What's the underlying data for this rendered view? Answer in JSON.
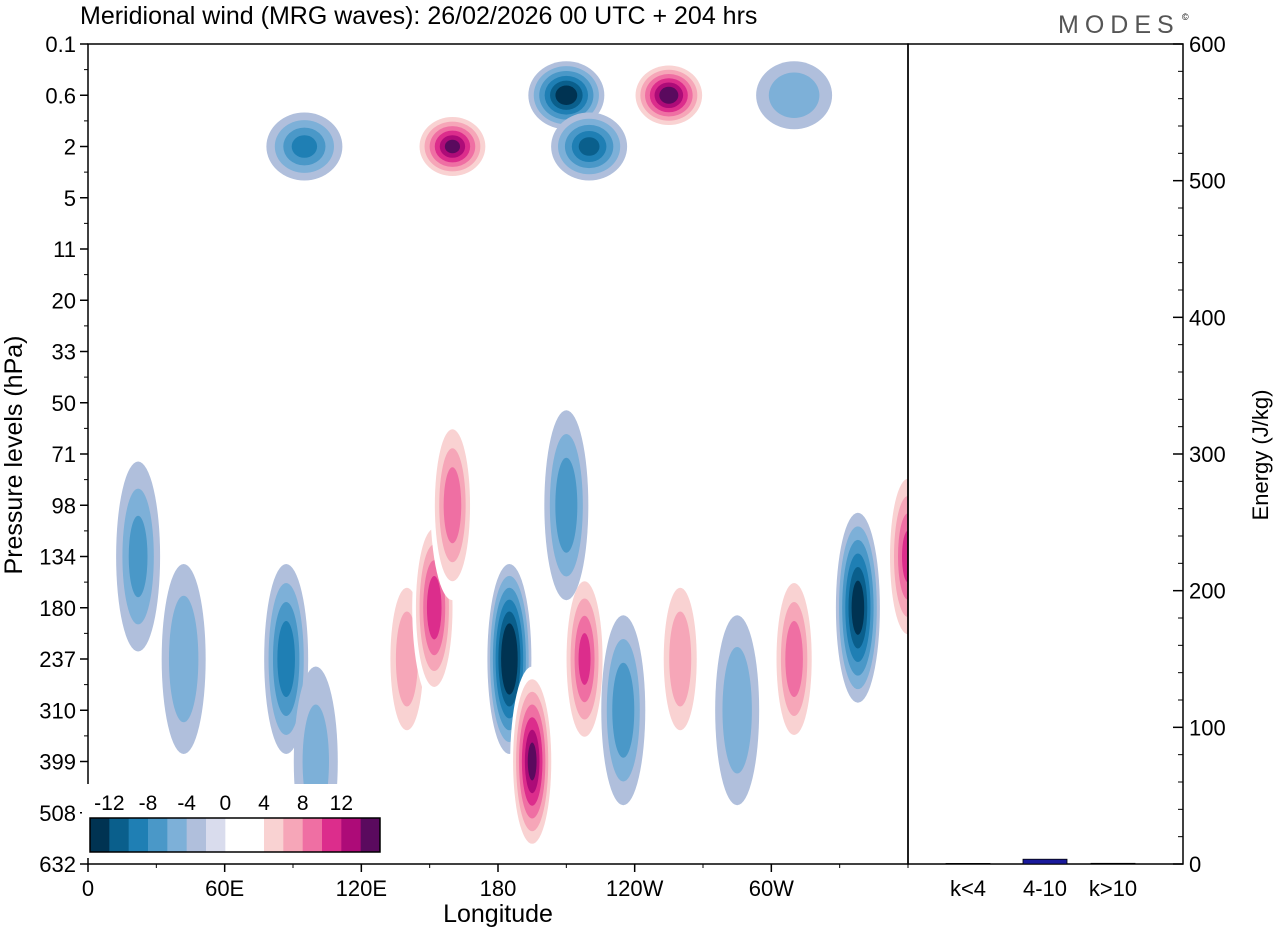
{
  "header": {
    "title": "Meridional wind (MRG waves):  26/02/2026  00 UTC  + 204 hrs",
    "logo": "MODES",
    "logo_mark": "©"
  },
  "chart_data": [
    {
      "type": "heatmap",
      "title": "Meridional wind (MRG waves)",
      "xlabel": "Longitude",
      "ylabel": "Pressure levels (hPa)",
      "x_ticks": [
        "0",
        "60E",
        "120E",
        "180",
        "120W",
        "60W"
      ],
      "x_tick_degrees": [
        0,
        60,
        120,
        180,
        240,
        300
      ],
      "xlim": [
        0,
        360
      ],
      "y_ticks": [
        "0.1",
        "0.6",
        "2",
        "5",
        "11",
        "20",
        "33",
        "50",
        "71",
        "98",
        "134",
        "180",
        "237",
        "310",
        "399",
        "508",
        "632"
      ],
      "colorbar": {
        "labels": [
          "-12",
          "-8",
          "-4",
          "0",
          "4",
          "8",
          "12"
        ],
        "label_levels": [
          -12,
          -8,
          -4,
          0,
          4,
          8,
          12
        ],
        "levels": [
          -14,
          -12,
          -10,
          -8,
          -6,
          -4,
          -2,
          0,
          2,
          4,
          6,
          8,
          10,
          12,
          14
        ],
        "colors": [
          "#003352",
          "#0a5f8c",
          "#1f7fb4",
          "#4a98c8",
          "#7db0d8",
          "#b0bfdc",
          "#d9dced",
          "#ffffff",
          "#ffffff",
          "#f9d2d2",
          "#f6a6b8",
          "#ef6fa3",
          "#dc2d8c",
          "#ad0b78",
          "#5a0a5e"
        ]
      },
      "features": [
        {
          "lon": 22,
          "level": "134",
          "value": -6
        },
        {
          "lon": 42,
          "level": "237",
          "value": -5
        },
        {
          "lon": 87,
          "level": "237",
          "value": -9
        },
        {
          "lon": 100,
          "level": "399",
          "value": -4
        },
        {
          "lon": 140,
          "level": "237",
          "value": 7
        },
        {
          "lon": 152,
          "level": "180",
          "value": 11
        },
        {
          "lon": 185,
          "level": "237",
          "value": -15
        },
        {
          "lon": 195,
          "level": "399",
          "value": 14
        },
        {
          "lon": 218,
          "level": "237",
          "value": 10
        },
        {
          "lon": 235,
          "level": "310",
          "value": -7
        },
        {
          "lon": 260,
          "level": "237",
          "value": 7
        },
        {
          "lon": 285,
          "level": "310",
          "value": -5
        },
        {
          "lon": 310,
          "level": "237",
          "value": 9
        },
        {
          "lon": 338,
          "level": "180",
          "value": -13
        },
        {
          "lon": 360,
          "level": "134",
          "value": 10
        },
        {
          "lon": 160,
          "level": "98",
          "value": 9
        },
        {
          "lon": 210,
          "level": "98",
          "value": -7
        },
        {
          "lon": 95,
          "level": "2",
          "value": -8
        },
        {
          "lon": 160,
          "level": "2",
          "value": 14
        },
        {
          "lon": 210,
          "level": "0.6",
          "value": -13
        },
        {
          "lon": 220,
          "level": "2",
          "value": -10
        },
        {
          "lon": 255,
          "level": "0.6",
          "value": 15
        },
        {
          "lon": 310,
          "level": "0.6",
          "value": -5
        }
      ]
    },
    {
      "type": "bar",
      "title": "Energy",
      "ylabel": "Energy (J/kg)",
      "categories": [
        "k<4",
        "4-10",
        "k>10"
      ],
      "values": [
        0.4,
        3.5,
        0.5
      ],
      "ylim": [
        0,
        600
      ],
      "y_ticks": [
        "0",
        "100",
        "200",
        "300",
        "400",
        "500",
        "600"
      ],
      "y_tick_values": [
        0,
        100,
        200,
        300,
        400,
        500,
        600
      ],
      "bar_color": "#1a1a9c"
    }
  ]
}
